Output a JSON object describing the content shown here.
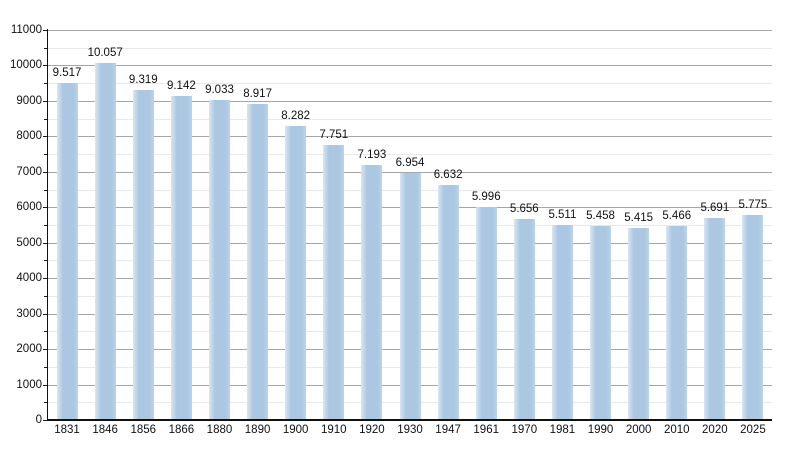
{
  "chart_data": {
    "type": "bar",
    "title": "",
    "xlabel": "",
    "ylabel": "",
    "categories": [
      "1831",
      "1846",
      "1856",
      "1866",
      "1880",
      "1890",
      "1900",
      "1910",
      "1920",
      "1930",
      "1947",
      "1961",
      "1970",
      "1981",
      "1990",
      "2000",
      "2010",
      "2020",
      "2025"
    ],
    "values": [
      9517,
      10057,
      9319,
      9142,
      9033,
      8917,
      8282,
      7751,
      7193,
      6954,
      6632,
      5996,
      5656,
      5511,
      5458,
      5415,
      5466,
      5691,
      5775
    ],
    "value_labels": [
      "9.517",
      "10.057",
      "9.319",
      "9.142",
      "9.033",
      "8.917",
      "8.282",
      "7.751",
      "7.193",
      "6.954",
      "6.632",
      "5.996",
      "5.656",
      "5.511",
      "5.458",
      "5.415",
      "5.466",
      "5.691",
      "5.775"
    ],
    "ylim": [
      0,
      11000
    ],
    "y_major_step": 1000,
    "y_minor_step": 500,
    "y_tick_labels": [
      "0",
      "1000",
      "2000",
      "3000",
      "4000",
      "5000",
      "6000",
      "7000",
      "8000",
      "9000",
      "10000",
      "11000"
    ],
    "grid": true,
    "legend": false,
    "colors": {
      "bar": "#abc7e2",
      "bar_edge_fade": "#d9e6f3",
      "major_grid": "#a6a6a6",
      "minor_grid": "#e9e9e9",
      "axis": "#111111",
      "text": "#111111",
      "background": "#ffffff"
    }
  }
}
